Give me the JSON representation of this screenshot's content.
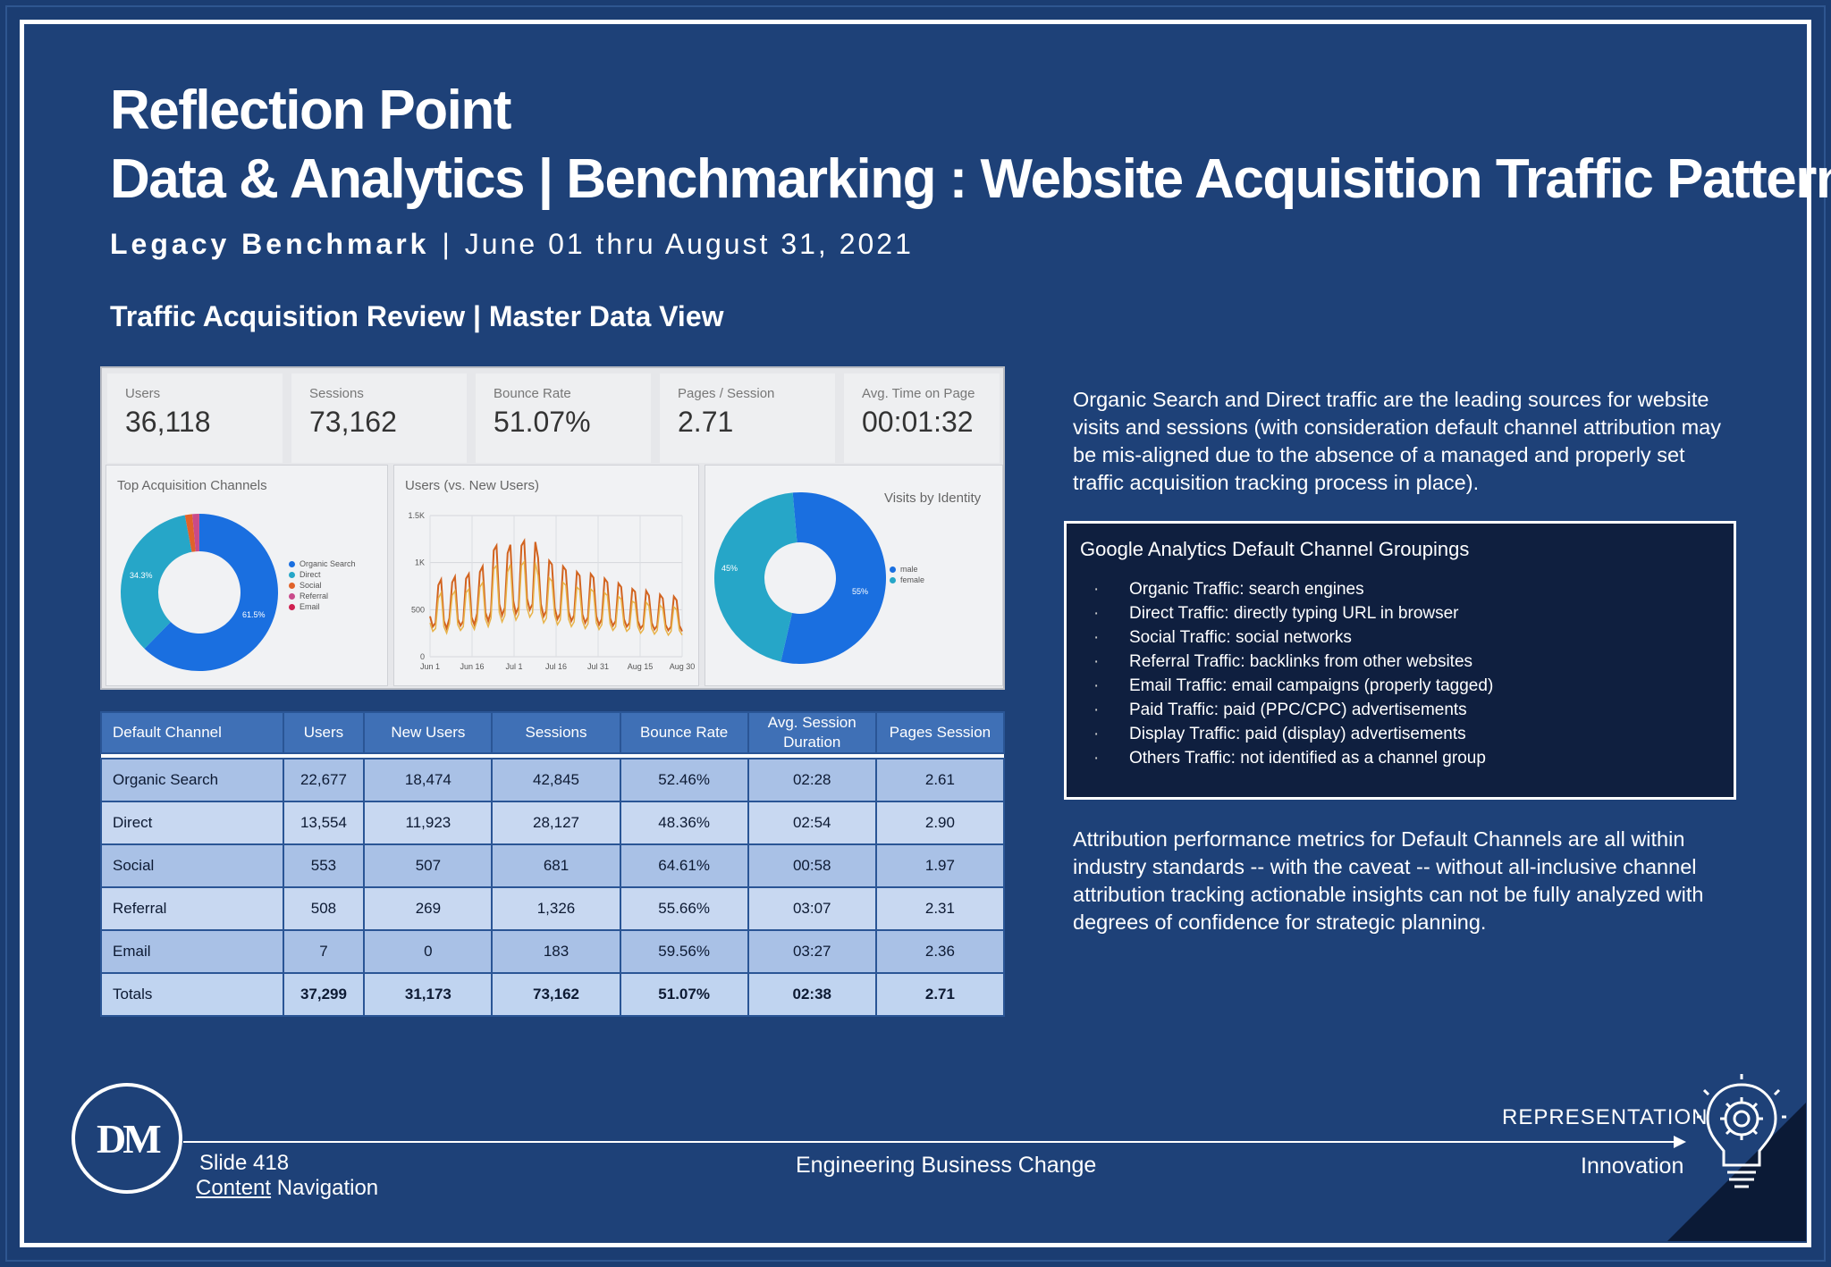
{
  "header": {
    "title_line1": "Reflection Point",
    "title_line2": "Data & Analytics | Benchmarking : Website Acquisition Traffic Patterns.",
    "subtitle_bold": "Legacy Benchmark",
    "subtitle_sep": "|",
    "subtitle_dates": "June 01 thru August 31, 2021",
    "review_title": "Traffic Acquisition Review | Master Data View"
  },
  "kpis": [
    {
      "label": "Users",
      "value": "36,118"
    },
    {
      "label": "Sessions",
      "value": "73,162"
    },
    {
      "label": "Bounce Rate",
      "value": "51.07%"
    },
    {
      "label": "Pages / Session",
      "value": "2.71"
    },
    {
      "label": "Avg. Time on Page",
      "value": "00:01:32"
    }
  ],
  "panels": {
    "channels_title": "Top Acquisition Channels",
    "channels_legend": [
      "Organic Search",
      "Direct",
      "Social",
      "Referral",
      "Email"
    ],
    "channels_labels": [
      "34.3%",
      "61.5%"
    ],
    "users_title": "Users (vs. New Users)",
    "users_yticks": [
      "1.5K",
      "1K",
      "500",
      "0"
    ],
    "users_xticks": [
      "Jun 1",
      "Jun 16",
      "Jul 1",
      "Jul 16",
      "Jul 31",
      "Aug 15",
      "Aug 30"
    ],
    "identity_title": "Visits by Identity",
    "identity_legend": [
      "male",
      "female"
    ],
    "identity_labels": [
      "45%",
      "55%"
    ]
  },
  "chart_data": [
    {
      "type": "pie",
      "title": "Top Acquisition Channels",
      "categories": [
        "Organic Search",
        "Direct",
        "Social",
        "Referral",
        "Email"
      ],
      "values": [
        61.5,
        34.3,
        1.5,
        1.4,
        0.02
      ],
      "colors": [
        "#1a6fe0",
        "#26a6c8",
        "#e0622a",
        "#c94a8a",
        "#d02050"
      ]
    },
    {
      "type": "pie",
      "title": "Visits by Identity",
      "categories": [
        "male",
        "female"
      ],
      "values": [
        55,
        45
      ],
      "colors": [
        "#1a6fe0",
        "#26a6c8"
      ]
    },
    {
      "type": "line",
      "title": "Users (vs. New Users)",
      "ylim": [
        0,
        1500
      ],
      "series": [
        {
          "name": "Users",
          "values": [
            430,
            320,
            360,
            760,
            820,
            380,
            300,
            410,
            790,
            850,
            400,
            330,
            380,
            830,
            880,
            420,
            340,
            460,
            900,
            960,
            470,
            380,
            480,
            1130,
            1180,
            560,
            440,
            520,
            1100,
            1190,
            600,
            460,
            530,
            1180,
            1230,
            620,
            500,
            560,
            1220,
            1050,
            560,
            430,
            490,
            1020,
            980,
            520,
            400,
            460,
            960,
            920,
            480,
            380,
            440,
            900,
            860,
            450,
            360,
            420,
            880,
            840,
            430,
            340,
            400,
            830,
            790,
            410,
            330,
            380,
            780,
            740,
            400,
            320,
            360,
            720,
            690,
            380,
            300,
            340,
            700,
            650,
            360,
            290,
            330,
            660,
            620,
            340,
            280,
            320,
            640,
            600,
            330,
            270
          ]
        },
        {
          "name": "New Users",
          "values": [
            360,
            270,
            300,
            620,
            680,
            320,
            250,
            350,
            650,
            700,
            340,
            280,
            320,
            680,
            720,
            350,
            290,
            390,
            740,
            790,
            400,
            320,
            410,
            930,
            970,
            470,
            370,
            440,
            900,
            980,
            500,
            390,
            450,
            970,
            1010,
            520,
            420,
            470,
            1000,
            860,
            470,
            360,
            410,
            840,
            800,
            440,
            340,
            390,
            790,
            760,
            400,
            320,
            370,
            740,
            710,
            380,
            300,
            350,
            720,
            690,
            360,
            290,
            340,
            680,
            650,
            350,
            280,
            320,
            640,
            610,
            340,
            270,
            300,
            590,
            570,
            320,
            250,
            290,
            580,
            540,
            300,
            240,
            280,
            550,
            510,
            290,
            230,
            270,
            530,
            500,
            280,
            230
          ]
        }
      ]
    }
  ],
  "table": {
    "headers": [
      "Default Channel",
      "Users",
      "New Users",
      "Sessions",
      "Bounce Rate",
      "Avg. Session Duration",
      "Pages Session"
    ],
    "rows": [
      [
        "Organic Search",
        "22,677",
        "18,474",
        "42,845",
        "52.46%",
        "02:28",
        "2.61"
      ],
      [
        "Direct",
        "13,554",
        "11,923",
        "28,127",
        "48.36%",
        "02:54",
        "2.90"
      ],
      [
        "Social",
        "553",
        "507",
        "681",
        "64.61%",
        "00:58",
        "1.97"
      ],
      [
        "Referral",
        "508",
        "269",
        "1,326",
        "55.66%",
        "03:07",
        "2.31"
      ],
      [
        "Email",
        "7",
        "0",
        "183",
        "59.56%",
        "03:27",
        "2.36"
      ]
    ],
    "totals": [
      "Totals",
      "37,299",
      "31,173",
      "73,162",
      "51.07%",
      "02:38",
      "2.71"
    ]
  },
  "right": {
    "para1": "Organic Search and Direct traffic are the leading sources for website visits and sessions (with consideration default channel attribution may be mis-aligned due to the absence of a managed and properly set traffic acquisition tracking process in place).",
    "box_title": "Google Analytics Default Channel Groupings",
    "box_items": [
      "Organic Traffic: search engines",
      "Direct Traffic: directly typing URL in browser",
      "Social Traffic: social networks",
      "Referral Traffic: backlinks from other websites",
      "Email Traffic: email campaigns (properly tagged)",
      "Paid Traffic: paid (PPC/CPC) advertisements",
      "Display Traffic: paid (display) advertisements",
      "Others Traffic: not identified as a channel group"
    ],
    "para2": "Attribution performance metrics for Default Channels are all within industry standards -- with the caveat --  without all-inclusive channel attribution tracking actionable insights can not be fully analyzed with degrees of confidence for strategic planning."
  },
  "footer": {
    "logo": "DM",
    "slide": "Slide 418",
    "nav_content": "Content",
    "nav_rest": " Navigation",
    "center": "Engineering Business Change",
    "representation": "REPRESENTATION",
    "innovation": "Innovation",
    "icon": "lightbulb-gear-icon"
  }
}
